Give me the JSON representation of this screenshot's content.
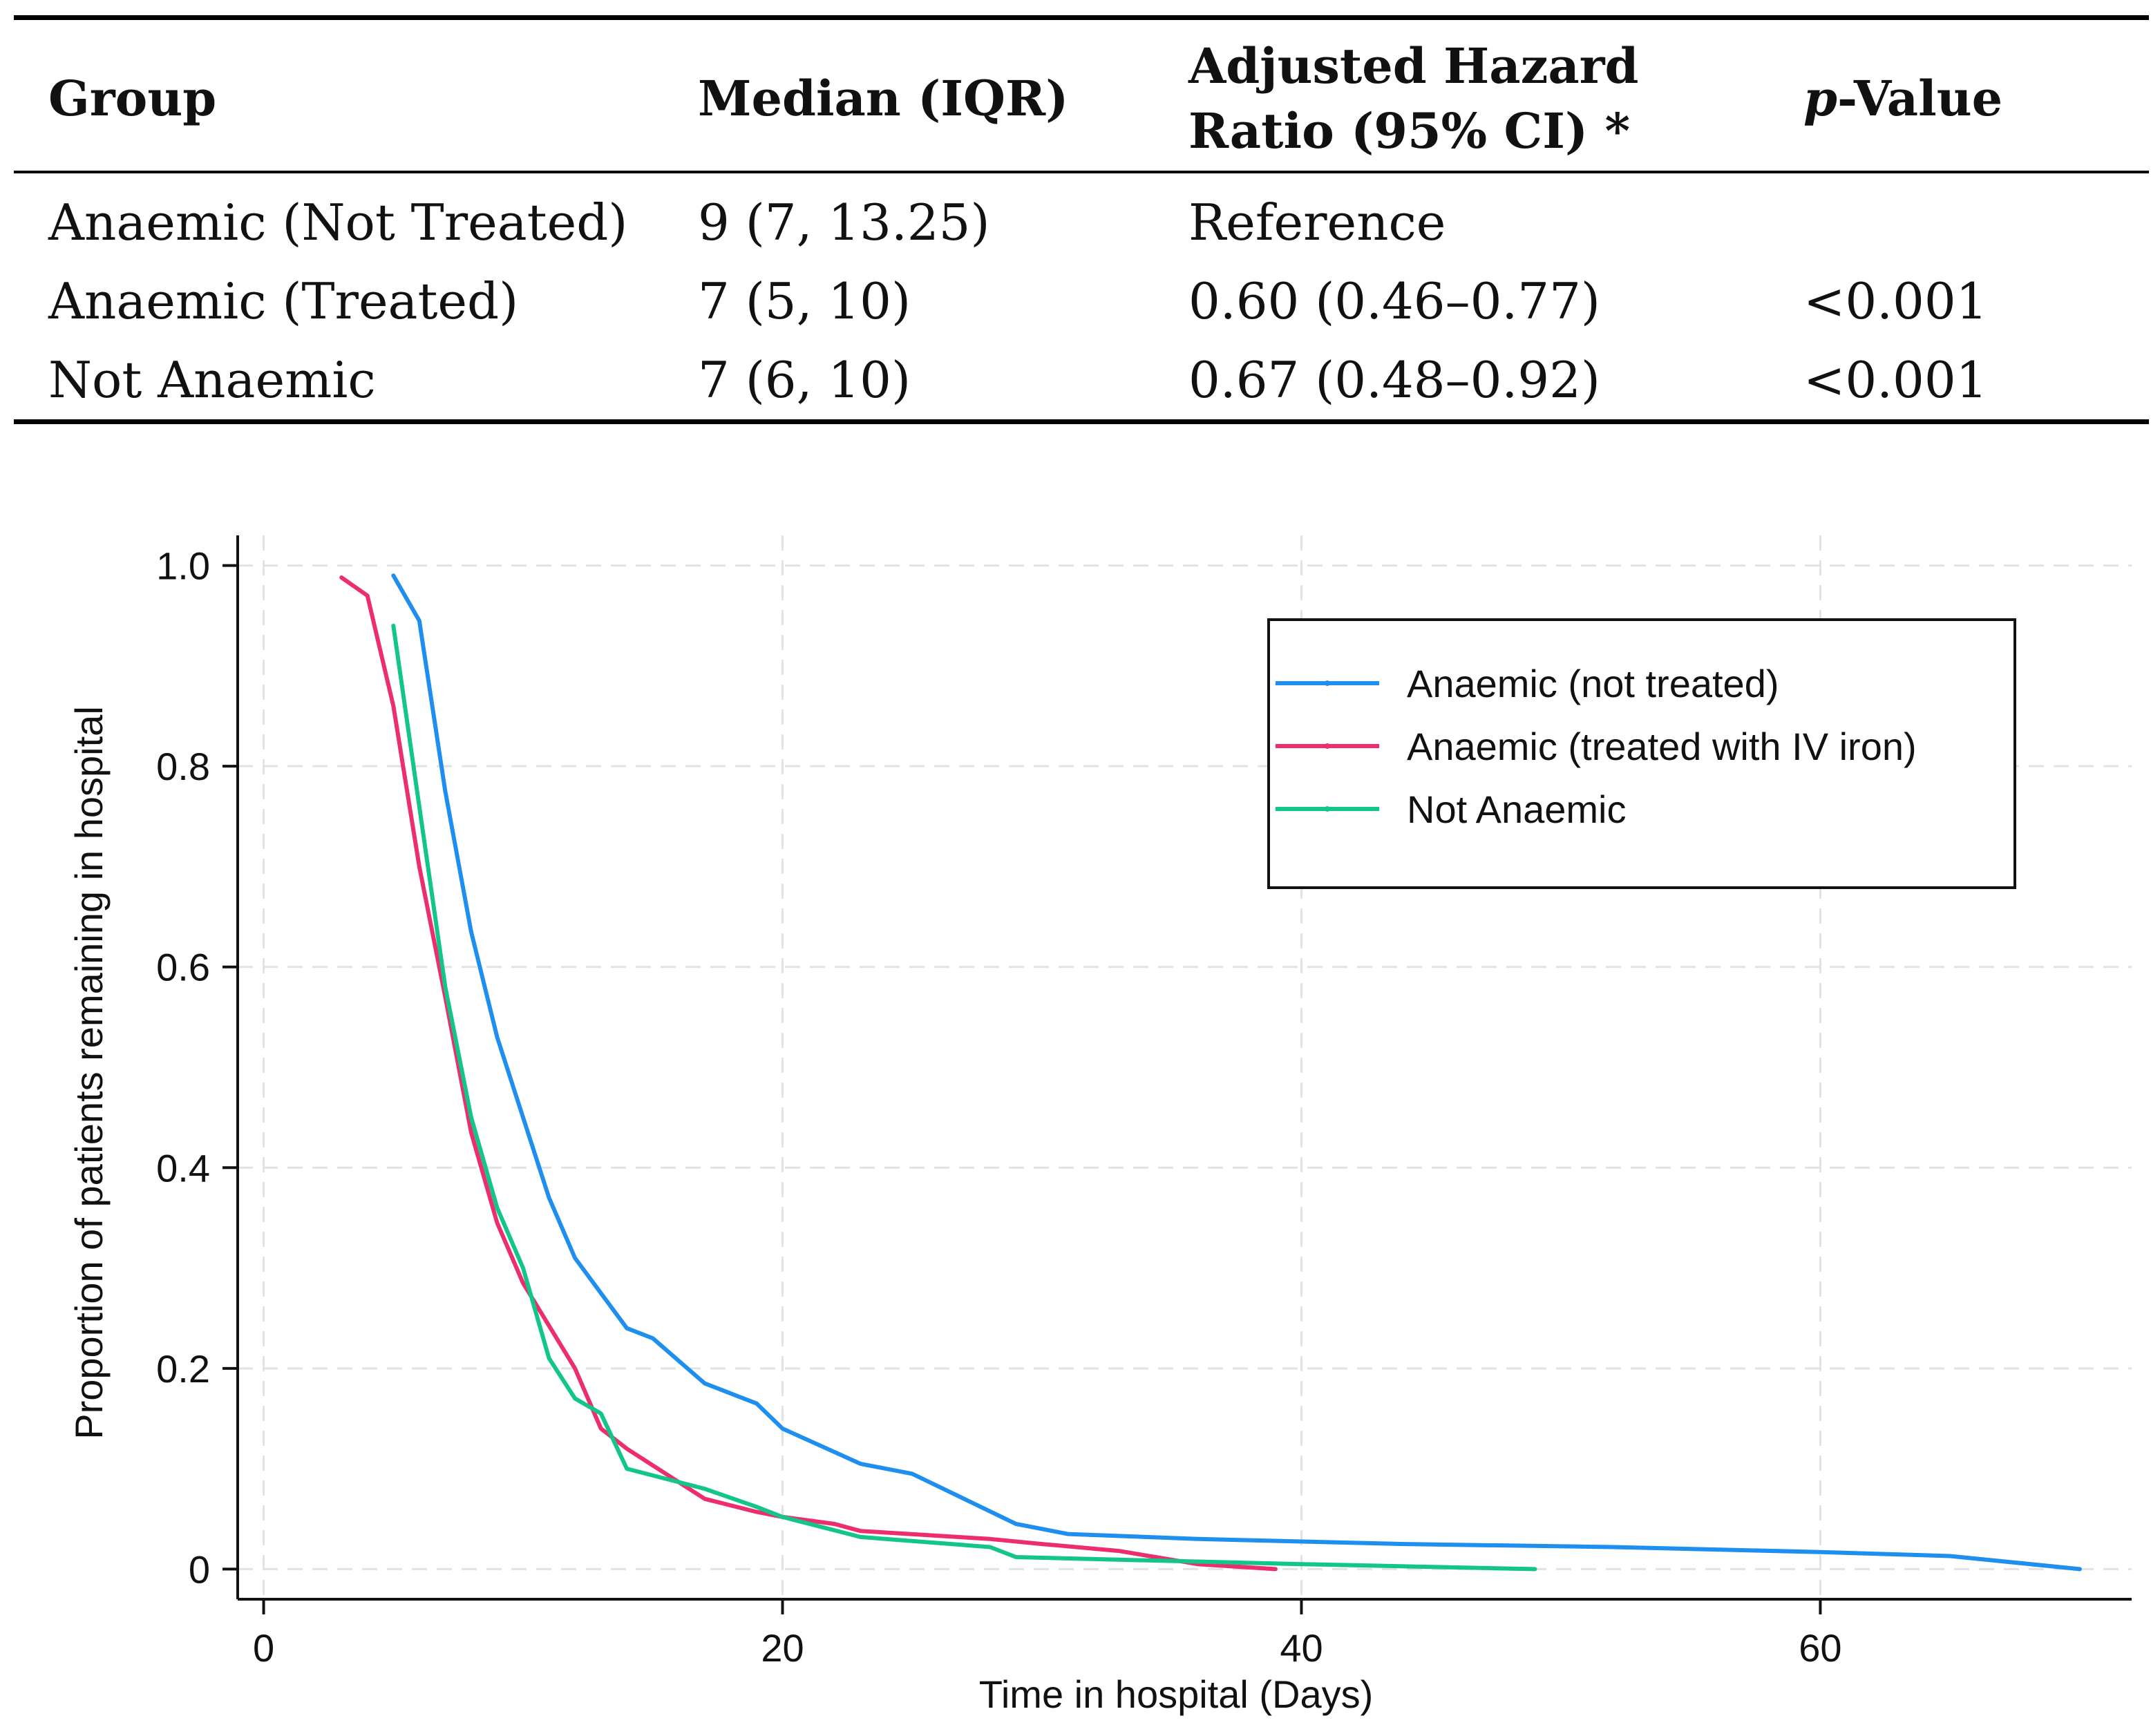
{
  "table": {
    "headers": {
      "group": "Group",
      "median": "Median (IQR)",
      "hr_line1": "Adjusted Hazard",
      "hr_line2": "Ratio (95% CI) *",
      "p_italic": "p",
      "p_rest": "-Value"
    },
    "rows": [
      {
        "group": "Anaemic (Not Treated)",
        "median": "9 (7, 13.25)",
        "hr": "Reference",
        "p": ""
      },
      {
        "group": "Anaemic (Treated)",
        "median": "7 (5, 10)",
        "hr": "0.60 (0.46–0.77)",
        "p": "<0.001"
      },
      {
        "group": "Not Anaemic",
        "median": "7 (6, 10)",
        "hr": "0.67 (0.48–0.92)",
        "p": "<0.001"
      }
    ]
  },
  "chart_data": {
    "type": "line",
    "title": "",
    "xlabel": "Time in hospital (Days)",
    "ylabel": "Proportion of patients remaining in hospital",
    "xlim": [
      -1,
      72
    ],
    "ylim": [
      -0.03,
      1.03
    ],
    "xticks": [
      "0",
      "20",
      "40",
      "60"
    ],
    "yticks": [
      "0",
      "0.2",
      "0.4",
      "0.6",
      "0.8",
      "1.0"
    ],
    "grid": true,
    "legend_position": "top-right",
    "series": [
      {
        "name": "Anaemic (not treated)",
        "color": "#1f8fef",
        "x": [
          5,
          6,
          7,
          8,
          9,
          10,
          11,
          12,
          14,
          15,
          17,
          19,
          20,
          23,
          25,
          29,
          31,
          36,
          44,
          52,
          60,
          65,
          70
        ],
        "y": [
          0.99,
          0.945,
          0.775,
          0.635,
          0.53,
          0.45,
          0.37,
          0.31,
          0.24,
          0.23,
          0.185,
          0.165,
          0.14,
          0.105,
          0.095,
          0.045,
          0.035,
          0.03,
          0.025,
          0.022,
          0.017,
          0.013,
          0.0
        ]
      },
      {
        "name": "Anaemic (treated with IV iron)",
        "color": "#ec2e6a",
        "x": [
          3,
          4,
          5,
          6,
          7,
          8,
          9,
          10,
          12,
          13,
          14,
          17,
          19,
          20,
          22,
          23,
          28,
          30,
          33,
          36,
          39
        ],
        "y": [
          0.988,
          0.97,
          0.86,
          0.7,
          0.57,
          0.435,
          0.345,
          0.285,
          0.2,
          0.14,
          0.12,
          0.07,
          0.057,
          0.052,
          0.045,
          0.038,
          0.03,
          0.025,
          0.018,
          0.005,
          0.0
        ]
      },
      {
        "name": "Not Anaemic",
        "color": "#14c58a",
        "x": [
          5,
          6,
          7,
          8,
          9,
          10,
          11,
          12,
          13,
          14,
          17,
          19,
          20,
          23,
          28,
          29,
          32,
          40,
          49
        ],
        "y": [
          0.94,
          0.76,
          0.58,
          0.45,
          0.36,
          0.3,
          0.21,
          0.17,
          0.155,
          0.1,
          0.08,
          0.062,
          0.052,
          0.032,
          0.022,
          0.012,
          0.01,
          0.005,
          0.0
        ]
      }
    ]
  }
}
